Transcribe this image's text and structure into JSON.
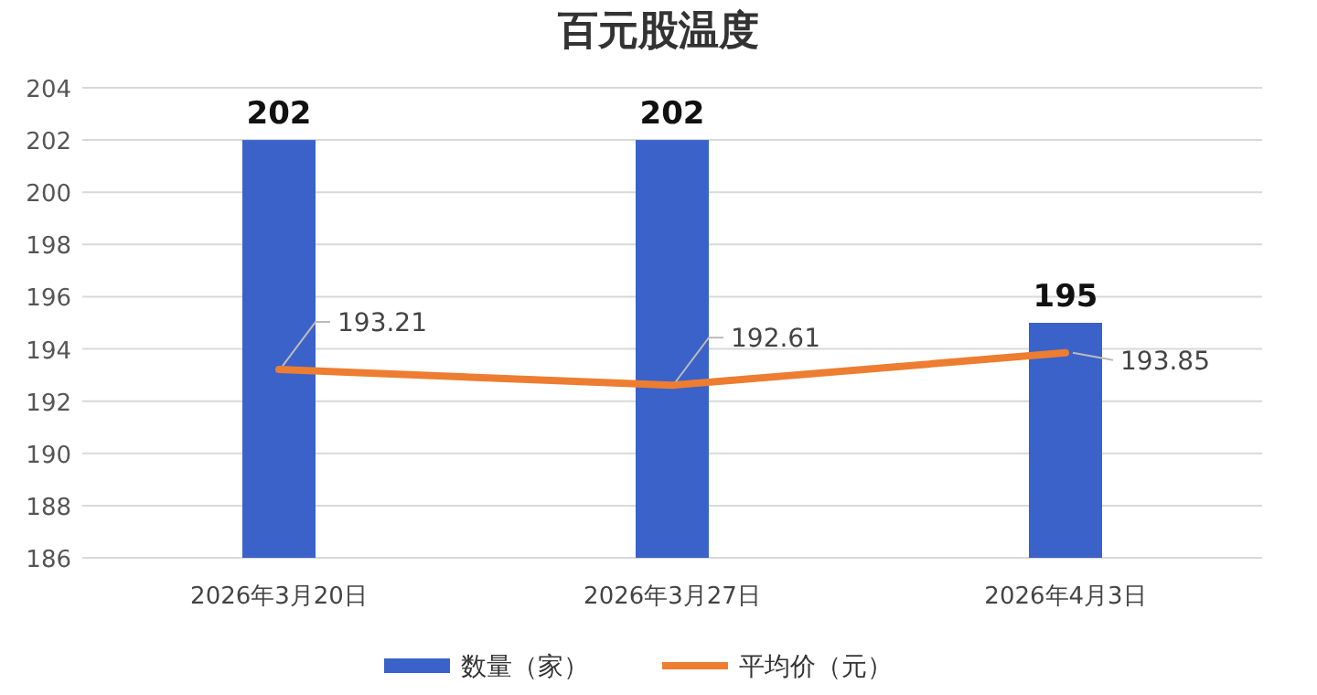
{
  "chart_data": {
    "type": "bar",
    "title": "百元股温度",
    "categories": [
      "2026年3月20日",
      "2026年3月27日",
      "2026年4月3日"
    ],
    "series": [
      {
        "name": "数量（家）",
        "color": "#3a62c8",
        "values": [
          202,
          202,
          195
        ]
      },
      {
        "name": "平均价（元）",
        "type": "line",
        "color": "#ed7d31",
        "values": [
          193.21,
          192.61,
          193.85
        ]
      }
    ],
    "ylim": [
      186,
      204
    ],
    "yticks": [
      186,
      188,
      190,
      192,
      194,
      196,
      198,
      200,
      202,
      204
    ],
    "grid": "y",
    "legend": "bottom",
    "data_labels": true
  }
}
